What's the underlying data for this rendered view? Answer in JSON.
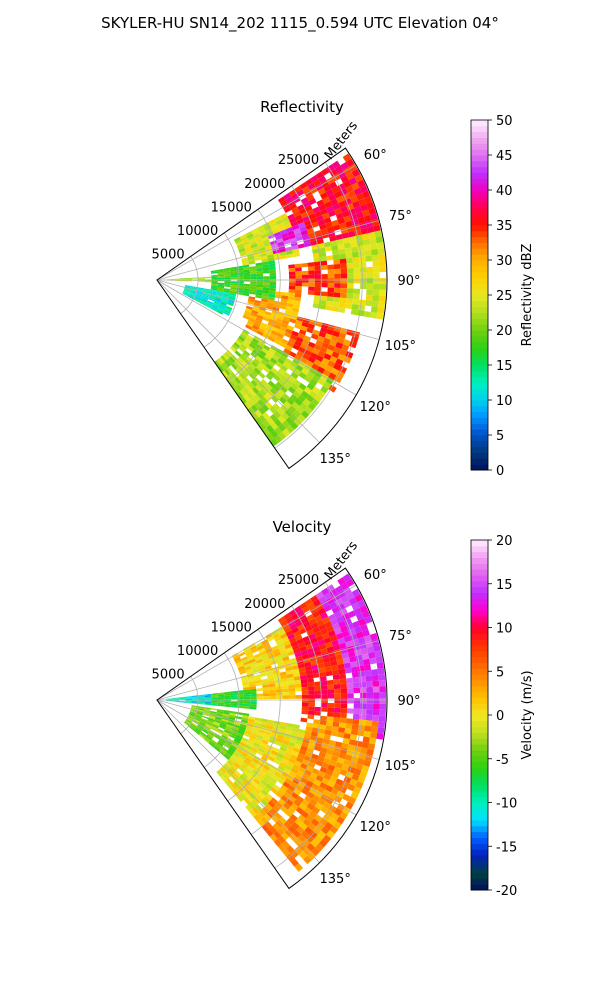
{
  "suptitle": "SKYLER-HU  SN14_202  1115_0.594 UTC Elevation 04°",
  "chart_data": [
    {
      "type": "heatmap",
      "projection": "polar-sector",
      "title": "Reflectivity",
      "radial_label": "Meters",
      "radial_ticks": [
        "5000",
        "10000",
        "15000",
        "20000",
        "25000"
      ],
      "radial_range": [
        0,
        28000
      ],
      "azimuth_ticks": [
        "60°",
        "75°",
        "90°",
        "105°",
        "120°",
        "135°"
      ],
      "azimuth_range_deg": [
        55,
        145
      ],
      "grid": true,
      "colorbar": {
        "label": "Reflectivity dBZ",
        "ticks": [
          "0",
          "5",
          "10",
          "15",
          "20",
          "25",
          "30",
          "35",
          "40",
          "45",
          "50"
        ],
        "range": [
          0,
          50
        ]
      },
      "regions": [
        {
          "az": [
            57,
            78
          ],
          "r": [
            17000,
            27500
          ],
          "value": 36
        },
        {
          "az": [
            63,
            80
          ],
          "r": [
            10000,
            17000
          ],
          "value": 24
        },
        {
          "az": [
            68,
            78
          ],
          "r": [
            14000,
            19000
          ],
          "value": 42
        },
        {
          "az": [
            78,
            100
          ],
          "r": [
            19000,
            27500
          ],
          "value": 24
        },
        {
          "az": [
            84,
            96
          ],
          "r": [
            16000,
            23000
          ],
          "value": 34
        },
        {
          "az": [
            96,
            118
          ],
          "r": [
            11000,
            17000
          ],
          "value": 30
        },
        {
          "az": [
            104,
            122
          ],
          "r": [
            17000,
            25000
          ],
          "value": 33
        },
        {
          "az": [
            120,
            145
          ],
          "r": [
            12000,
            24000
          ],
          "value": 22
        },
        {
          "az": [
            86,
            92
          ],
          "r": [
            0,
            12000
          ],
          "value": 22
        },
        {
          "az": [
            100,
            118
          ],
          "r": [
            3000,
            9000
          ],
          "value": 12
        },
        {
          "az": [
            80,
            100
          ],
          "r": [
            6000,
            14000
          ],
          "value": 18
        }
      ]
    },
    {
      "type": "heatmap",
      "projection": "polar-sector",
      "title": "Velocity",
      "radial_label": "Meters",
      "radial_ticks": [
        "5000",
        "10000",
        "15000",
        "20000",
        "25000"
      ],
      "radial_range": [
        0,
        28000
      ],
      "azimuth_ticks": [
        "60°",
        "75°",
        "90°",
        "105°",
        "120°",
        "135°"
      ],
      "azimuth_range_deg": [
        55,
        145
      ],
      "grid": true,
      "colorbar": {
        "label": "Velocity (m/s)",
        "ticks": [
          "-20",
          "-15",
          "-10",
          "-5",
          "0",
          "5",
          "10",
          "15",
          "20"
        ],
        "range": [
          -20,
          20
        ]
      },
      "regions": [
        {
          "az": [
            57,
            100
          ],
          "r": [
            22500,
            27500
          ],
          "value": 14
        },
        {
          "az": [
            57,
            98
          ],
          "r": [
            17000,
            22500
          ],
          "value": 9
        },
        {
          "az": [
            60,
            90
          ],
          "r": [
            10000,
            17000
          ],
          "value": 1
        },
        {
          "az": [
            95,
            140
          ],
          "r": [
            18000,
            27000
          ],
          "value": 4
        },
        {
          "az": [
            100,
            140
          ],
          "r": [
            11000,
            18000
          ],
          "value": 0
        },
        {
          "az": [
            98,
            130
          ],
          "r": [
            4000,
            11000
          ],
          "value": -4
        },
        {
          "az": [
            84,
            96
          ],
          "r": [
            0,
            6000
          ],
          "value": -11
        },
        {
          "az": [
            84,
            96
          ],
          "r": [
            6000,
            12000
          ],
          "value": -6
        }
      ]
    }
  ]
}
